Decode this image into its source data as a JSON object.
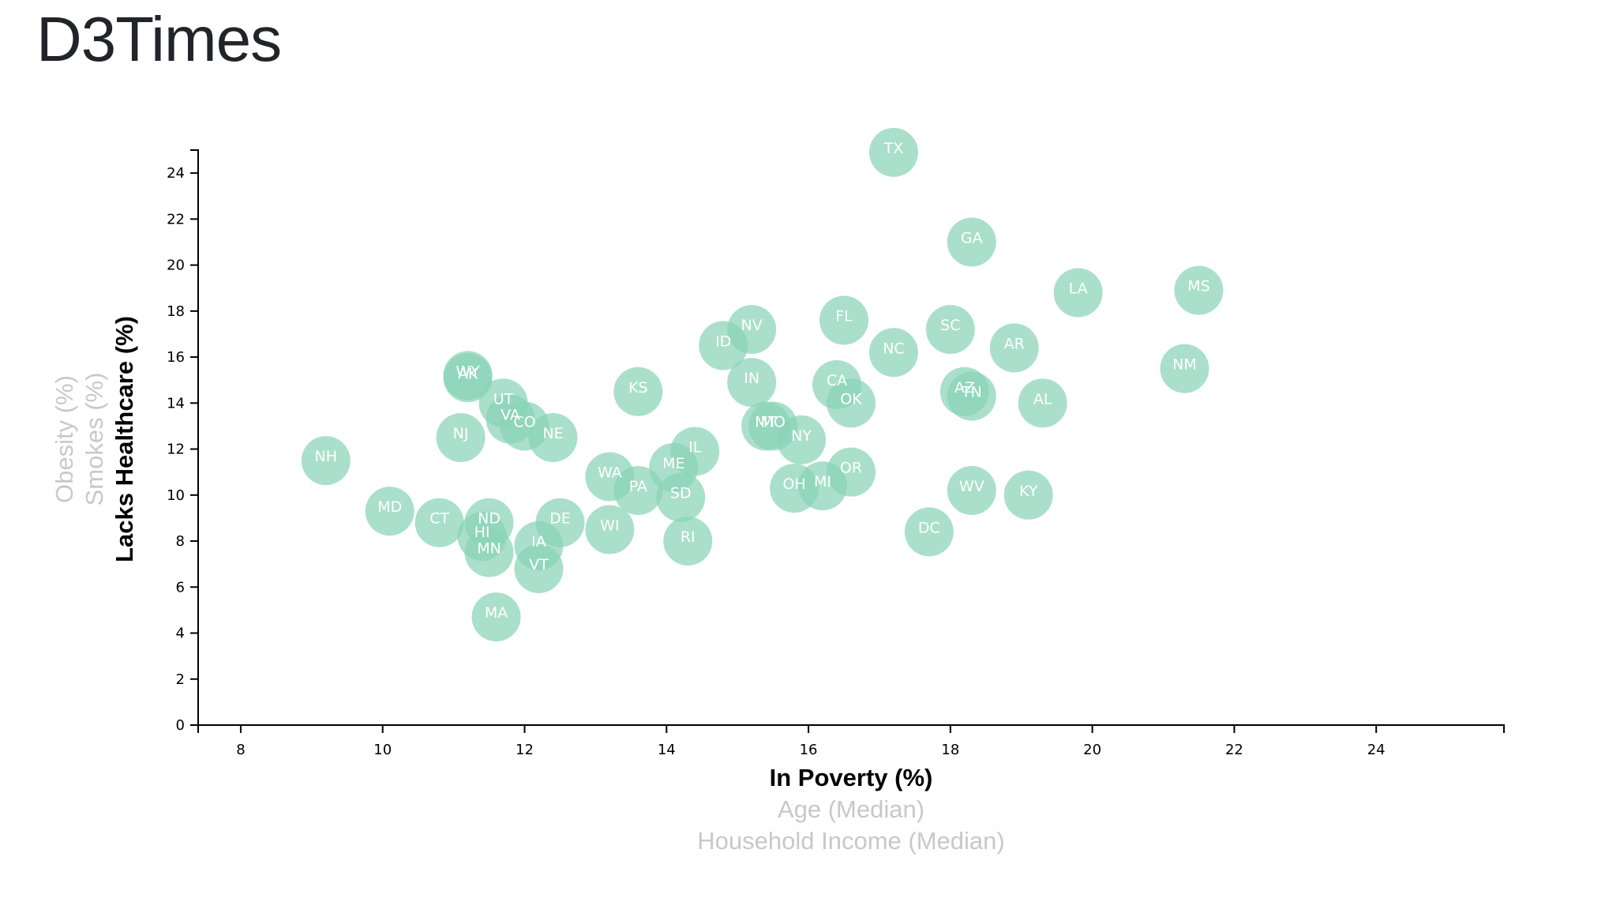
{
  "page": {
    "title": "D3Times"
  },
  "chart_data": {
    "type": "scatter",
    "x_options": [
      "In Poverty (%)",
      "Age (Median)",
      "Household Income (Median)"
    ],
    "y_options": [
      "Lacks Healthcare (%)",
      "Smokes (%)",
      "Obesity (%)"
    ],
    "active_x": "In Poverty (%)",
    "active_y": "Lacks Healthcare (%)",
    "xlim": [
      7.4,
      25.8
    ],
    "ylim": [
      0,
      25
    ],
    "x_ticks": [
      8,
      10,
      12,
      14,
      16,
      18,
      20,
      22,
      24
    ],
    "y_ticks": [
      0,
      2,
      4,
      6,
      8,
      10,
      12,
      14,
      16,
      18,
      20,
      22,
      24
    ],
    "marker_color": "#89d3b9",
    "grid": false,
    "points": [
      {
        "label": "TX",
        "x": 17.2,
        "y": 24.9
      },
      {
        "label": "GA",
        "x": 18.3,
        "y": 21.0
      },
      {
        "label": "LA",
        "x": 19.8,
        "y": 18.8
      },
      {
        "label": "MS",
        "x": 21.5,
        "y": 18.9
      },
      {
        "label": "FL",
        "x": 16.5,
        "y": 17.6
      },
      {
        "label": "NV",
        "x": 15.2,
        "y": 17.2
      },
      {
        "label": "SC",
        "x": 18.0,
        "y": 17.2
      },
      {
        "label": "ID",
        "x": 14.8,
        "y": 16.5
      },
      {
        "label": "AR",
        "x": 18.9,
        "y": 16.4
      },
      {
        "label": "NC",
        "x": 17.2,
        "y": 16.2
      },
      {
        "label": "NM",
        "x": 21.3,
        "y": 15.5
      },
      {
        "label": "WY",
        "x": 11.2,
        "y": 15.2
      },
      {
        "label": "AK",
        "x": 11.2,
        "y": 15.1
      },
      {
        "label": "IN",
        "x": 15.2,
        "y": 14.9
      },
      {
        "label": "CA",
        "x": 16.4,
        "y": 14.8
      },
      {
        "label": "KS",
        "x": 13.6,
        "y": 14.5
      },
      {
        "label": "AZ",
        "x": 18.2,
        "y": 14.5
      },
      {
        "label": "TN",
        "x": 18.3,
        "y": 14.3
      },
      {
        "label": "UT",
        "x": 11.7,
        "y": 14.0
      },
      {
        "label": "OK",
        "x": 16.6,
        "y": 14.0
      },
      {
        "label": "AL",
        "x": 19.3,
        "y": 14.0
      },
      {
        "label": "VA",
        "x": 11.8,
        "y": 13.3
      },
      {
        "label": "CO",
        "x": 12.0,
        "y": 13.0
      },
      {
        "label": "MT",
        "x": 15.4,
        "y": 13.0
      },
      {
        "label": "MO",
        "x": 15.5,
        "y": 13.0
      },
      {
        "label": "NJ",
        "x": 11.1,
        "y": 12.5
      },
      {
        "label": "NE",
        "x": 12.4,
        "y": 12.5
      },
      {
        "label": "NY",
        "x": 15.9,
        "y": 12.4
      },
      {
        "label": "IL",
        "x": 14.4,
        "y": 11.9
      },
      {
        "label": "NH",
        "x": 9.2,
        "y": 11.5
      },
      {
        "label": "ME",
        "x": 14.1,
        "y": 11.2
      },
      {
        "label": "OR",
        "x": 16.6,
        "y": 11.0
      },
      {
        "label": "WA",
        "x": 13.2,
        "y": 10.8
      },
      {
        "label": "OH",
        "x": 15.8,
        "y": 10.3
      },
      {
        "label": "MI",
        "x": 16.2,
        "y": 10.4
      },
      {
        "label": "PA",
        "x": 13.6,
        "y": 10.2
      },
      {
        "label": "WV",
        "x": 18.3,
        "y": 10.2
      },
      {
        "label": "KY",
        "x": 19.1,
        "y": 10.0
      },
      {
        "label": "SD",
        "x": 14.2,
        "y": 9.9
      },
      {
        "label": "MD",
        "x": 10.1,
        "y": 9.3
      },
      {
        "label": "CT",
        "x": 10.8,
        "y": 8.8
      },
      {
        "label": "ND",
        "x": 11.5,
        "y": 8.8
      },
      {
        "label": "DE",
        "x": 12.5,
        "y": 8.8
      },
      {
        "label": "WI",
        "x": 13.2,
        "y": 8.5
      },
      {
        "label": "DC",
        "x": 17.7,
        "y": 8.4
      },
      {
        "label": "HI",
        "x": 11.4,
        "y": 8.2
      },
      {
        "label": "RI",
        "x": 14.3,
        "y": 8.0
      },
      {
        "label": "IA",
        "x": 12.2,
        "y": 7.8
      },
      {
        "label": "MN",
        "x": 11.5,
        "y": 7.5
      },
      {
        "label": "VT",
        "x": 12.2,
        "y": 6.8
      },
      {
        "label": "MA",
        "x": 11.6,
        "y": 4.7
      }
    ]
  }
}
